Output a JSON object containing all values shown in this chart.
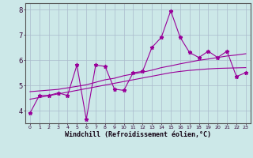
{
  "xlabel": "Windchill (Refroidissement éolien,°C)",
  "x_data": [
    0,
    1,
    2,
    3,
    4,
    5,
    6,
    7,
    8,
    9,
    10,
    11,
    12,
    13,
    14,
    15,
    16,
    17,
    18,
    19,
    20,
    21,
    22,
    23
  ],
  "y_jagged": [
    3.9,
    4.6,
    4.6,
    4.7,
    4.6,
    5.8,
    3.65,
    5.8,
    5.75,
    4.85,
    4.8,
    5.5,
    5.55,
    6.5,
    6.9,
    7.95,
    6.9,
    6.3,
    6.1,
    6.35,
    6.1,
    6.35,
    5.35,
    5.5
  ],
  "y_smooth1": [
    4.45,
    4.52,
    4.59,
    4.66,
    4.73,
    4.8,
    4.87,
    4.94,
    5.01,
    5.08,
    5.15,
    5.22,
    5.29,
    5.36,
    5.43,
    5.5,
    5.55,
    5.59,
    5.62,
    5.65,
    5.67,
    5.68,
    5.69,
    5.7
  ],
  "y_smooth2": [
    4.75,
    4.78,
    4.81,
    4.84,
    4.9,
    4.96,
    5.02,
    5.12,
    5.22,
    5.28,
    5.38,
    5.45,
    5.52,
    5.6,
    5.7,
    5.77,
    5.85,
    5.92,
    5.99,
    6.04,
    6.1,
    6.16,
    6.2,
    6.25
  ],
  "line_color": "#990099",
  "bg_color": "#cce8e8",
  "grid_color": "#aabbcc",
  "ylim": [
    3.5,
    8.25
  ],
  "xlim": [
    -0.5,
    23.5
  ],
  "yticks": [
    4,
    5,
    6,
    7,
    8
  ],
  "xticks": [
    0,
    1,
    2,
    3,
    4,
    5,
    6,
    7,
    8,
    9,
    10,
    11,
    12,
    13,
    14,
    15,
    16,
    17,
    18,
    19,
    20,
    21,
    22,
    23
  ]
}
